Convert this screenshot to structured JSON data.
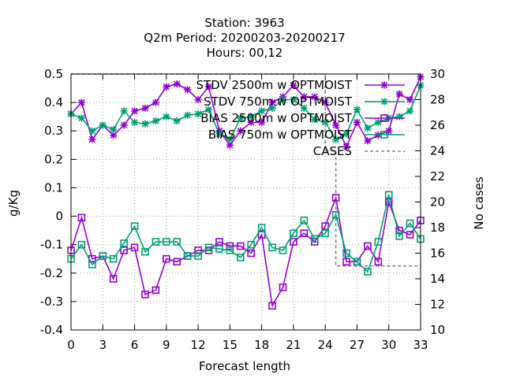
{
  "title": {
    "line1": "Station:      3963",
    "line2": "Q2m   Period: 20200203-20200217",
    "line3": "Hours:  00,12"
  },
  "chart_data": {
    "type": "line",
    "xlabel": "Forecast length",
    "ylabel": "g/Kg",
    "y2label": "No cases",
    "xlim": [
      0,
      33
    ],
    "ylim": [
      -0.4,
      0.5
    ],
    "y2lim": [
      10,
      30
    ],
    "xticks": [
      0,
      3,
      6,
      9,
      12,
      15,
      18,
      21,
      24,
      27,
      30,
      33
    ],
    "yticks": [
      -0.4,
      -0.3,
      -0.2,
      -0.1,
      0,
      0.1,
      0.2,
      0.3,
      0.4,
      0.5
    ],
    "y2ticks": [
      10,
      12,
      14,
      16,
      18,
      20,
      22,
      24,
      26,
      28,
      30
    ],
    "grid": true,
    "legend_position": "top-right",
    "series": [
      {
        "name": "STDV 2500m w OPTMOIST",
        "color": "#9400d3",
        "marker": "star",
        "axis": "y",
        "x": [
          0,
          1,
          2,
          3,
          4,
          5,
          6,
          7,
          8,
          9,
          10,
          11,
          12,
          13,
          14,
          15,
          16,
          17,
          18,
          19,
          20,
          21,
          22,
          23,
          24,
          25,
          26,
          27,
          28,
          29,
          30,
          31,
          32,
          33
        ],
        "values": [
          0.36,
          0.4,
          0.27,
          0.32,
          0.285,
          0.32,
          0.37,
          0.38,
          0.4,
          0.455,
          0.465,
          0.445,
          0.41,
          0.455,
          0.3,
          0.25,
          0.3,
          0.33,
          0.33,
          0.4,
          0.42,
          0.46,
          0.42,
          0.42,
          0.4,
          0.32,
          0.245,
          0.33,
          0.265,
          0.285,
          0.3,
          0.43,
          0.41,
          0.49
        ]
      },
      {
        "name": "STDV 750m w OPTMOIST",
        "color": "#009e73",
        "marker": "star",
        "axis": "y",
        "x": [
          0,
          1,
          2,
          3,
          4,
          5,
          6,
          7,
          8,
          9,
          10,
          11,
          12,
          13,
          14,
          15,
          16,
          17,
          18,
          19,
          20,
          21,
          22,
          23,
          24,
          25,
          26,
          27,
          28,
          29,
          30,
          31,
          32,
          33
        ],
        "values": [
          0.36,
          0.345,
          0.3,
          0.32,
          0.305,
          0.37,
          0.33,
          0.325,
          0.335,
          0.35,
          0.335,
          0.355,
          0.36,
          0.375,
          0.29,
          0.27,
          0.345,
          0.35,
          0.37,
          0.38,
          0.41,
          0.41,
          0.38,
          0.34,
          0.33,
          0.27,
          0.29,
          0.375,
          0.31,
          0.33,
          0.345,
          0.35,
          0.37,
          0.46
        ]
      },
      {
        "name": "BIAS 2500m w OPTMOIST",
        "color": "#9400d3",
        "marker": "square",
        "axis": "y",
        "x": [
          0,
          1,
          2,
          3,
          4,
          5,
          6,
          7,
          8,
          9,
          10,
          11,
          12,
          13,
          14,
          15,
          16,
          17,
          18,
          19,
          20,
          21,
          22,
          23,
          24,
          25,
          26,
          27,
          28,
          29,
          30,
          31,
          32,
          33
        ],
        "values": [
          -0.12,
          -0.005,
          -0.15,
          -0.14,
          -0.22,
          -0.12,
          -0.11,
          -0.275,
          -0.26,
          -0.15,
          -0.16,
          -0.14,
          -0.12,
          -0.12,
          -0.09,
          -0.105,
          -0.105,
          -0.13,
          -0.065,
          -0.315,
          -0.25,
          -0.09,
          -0.06,
          -0.09,
          -0.035,
          0.065,
          -0.16,
          -0.16,
          -0.105,
          -0.16,
          0.05,
          -0.05,
          -0.065,
          -0.015
        ]
      },
      {
        "name": "BIAS 750m w OPTMOIST",
        "color": "#009e73",
        "marker": "square",
        "axis": "y",
        "x": [
          0,
          1,
          2,
          3,
          4,
          5,
          6,
          7,
          8,
          9,
          10,
          11,
          12,
          13,
          14,
          15,
          16,
          17,
          18,
          19,
          20,
          21,
          22,
          23,
          24,
          25,
          26,
          27,
          28,
          29,
          30,
          31,
          32,
          33
        ],
        "values": [
          -0.15,
          -0.1,
          -0.17,
          -0.14,
          -0.15,
          -0.095,
          -0.035,
          -0.125,
          -0.09,
          -0.09,
          -0.09,
          -0.14,
          -0.14,
          -0.11,
          -0.115,
          -0.12,
          -0.145,
          -0.1,
          -0.04,
          -0.11,
          -0.12,
          -0.06,
          -0.015,
          -0.08,
          -0.06,
          0.005,
          -0.13,
          -0.16,
          -0.195,
          -0.09,
          0.075,
          -0.07,
          -0.025,
          -0.08
        ]
      },
      {
        "name": "CASES",
        "color": "#808080",
        "dashed": true,
        "axis": "y2",
        "step": true,
        "x": [
          0,
          1,
          2,
          3,
          4,
          5,
          6,
          7,
          8,
          9,
          10,
          11,
          12,
          13,
          14,
          15,
          16,
          17,
          18,
          19,
          20,
          21,
          22,
          23,
          24,
          25,
          26,
          27,
          28,
          29,
          30,
          31,
          32,
          33
        ],
        "values": [
          30,
          30,
          30,
          30,
          30,
          30,
          30,
          30,
          30,
          30,
          30,
          30,
          30,
          30,
          30,
          30,
          30,
          30,
          30,
          30,
          30,
          30,
          30,
          30,
          24,
          15,
          15,
          15,
          15,
          15,
          15,
          15,
          15,
          15
        ]
      }
    ]
  }
}
